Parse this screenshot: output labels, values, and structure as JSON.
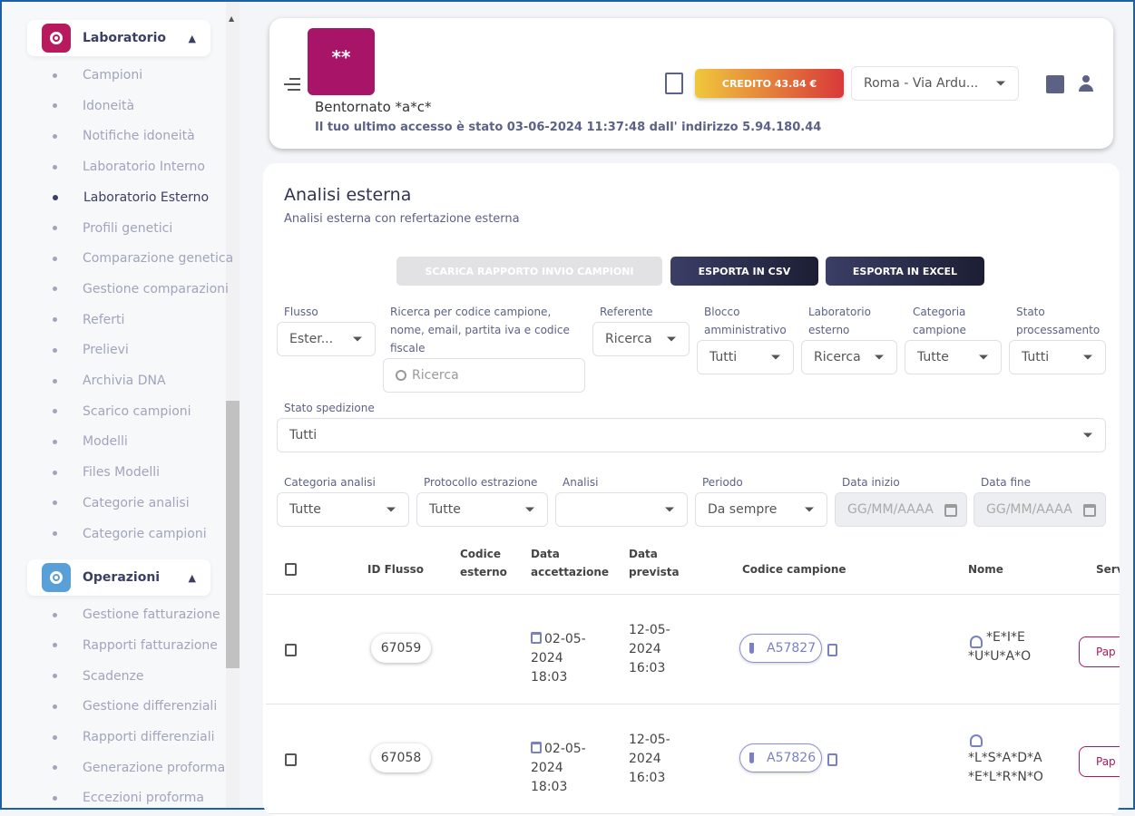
{
  "sidebar": {
    "groups": [
      {
        "label": "Laboratorio",
        "color": "#b81a5e",
        "items": [
          "Campioni",
          "Idoneità",
          "Notifiche idoneità",
          "Laboratorio Interno",
          "Laboratorio Esterno",
          "Profili genetici",
          "Comparazione genetica",
          "Gestione comparazioni",
          "Referti",
          "Prelievi",
          "Archivia DNA",
          "Scarico campioni",
          "Modelli",
          "Files Modelli",
          "Categorie analisi",
          "Categorie campioni"
        ]
      },
      {
        "label": "Operazioni",
        "color": "#5aa0d8",
        "items": [
          "Gestione fatturazione",
          "Rapporti fatturazione",
          "Scadenze",
          "Gestione differenziali",
          "Rapporti differenziali",
          "Generazione proforma",
          "Eccezioni proforma"
        ]
      }
    ],
    "active_item": "Laboratorio Esterno"
  },
  "header": {
    "avatar_text": "**",
    "welcome": "Bentornato *a*c*",
    "last_access": "Il tuo ultimo accesso è stato 03-06-2024 11:37:48 dall' indirizzo 5.94.180.44",
    "credit": "CREDITO 43.84 €",
    "sede": "Roma - Via Ardu..."
  },
  "page": {
    "title": "Analisi esterna",
    "subtitle": "Analisi esterna con refertazione esterna",
    "buttons": {
      "report": "SCARICA RAPPORTO INVIO CAMPIONI",
      "csv": "ESPORTA IN CSV",
      "excel": "ESPORTA IN EXCEL"
    }
  },
  "filters": {
    "flusso": {
      "label": "Flusso",
      "value": "Ester..."
    },
    "ricerca": {
      "label": "Ricerca per codice campione, nome, email, partita iva e codice fiscale",
      "placeholder": "Ricerca"
    },
    "referente": {
      "label": "Referente",
      "value": "Ricerca"
    },
    "blocco": {
      "label": "Blocco amministrativo",
      "value": "Tutti"
    },
    "laboratorio": {
      "label": "Laboratorio esterno",
      "value": "Ricerca"
    },
    "categoria_campione": {
      "label": "Categoria campione",
      "value": "Tutte"
    },
    "stato_processamento": {
      "label": "Stato processamento",
      "value": "Tutti"
    },
    "stato_spedizione": {
      "label": "Stato spedizione",
      "value": "Tutti"
    },
    "categoria_analisi": {
      "label": "Categoria analisi",
      "value": "Tutte"
    },
    "protocollo": {
      "label": "Protocollo estrazione",
      "value": "Tutte"
    },
    "analisi": {
      "label": "Analisi",
      "value": ""
    },
    "periodo": {
      "label": "Periodo",
      "value": "Da sempre"
    },
    "data_inizio": {
      "label": "Data inizio",
      "placeholder": "GG/MM/AAAA"
    },
    "data_fine": {
      "label": "Data fine",
      "placeholder": "GG/MM/AAAA"
    }
  },
  "table": {
    "columns": {
      "id": "ID Flusso",
      "codice_esterno": "Codice esterno",
      "data_accettazione": "Data accettazione",
      "data_prevista": "Data prevista",
      "codice_campione": "Codice campione",
      "nome": "Nome",
      "servizio": "Serv"
    },
    "rows": [
      {
        "id": "67059",
        "codice_esterno": "",
        "data_accettazione": "02-05-2024 18:03",
        "data_prevista": "12-05-2024 16:03",
        "codice_campione": "A57827",
        "nome": "*E*I*E *U*U*A*O",
        "servizio": "Pap"
      },
      {
        "id": "67058",
        "codice_esterno": "",
        "data_accettazione": "02-05-2024 18:03",
        "data_prevista": "12-05-2024 16:03",
        "codice_campione": "A57826",
        "nome": "*L*S*A*D*A *E*L*R*N*O",
        "servizio": "Pap"
      }
    ]
  }
}
